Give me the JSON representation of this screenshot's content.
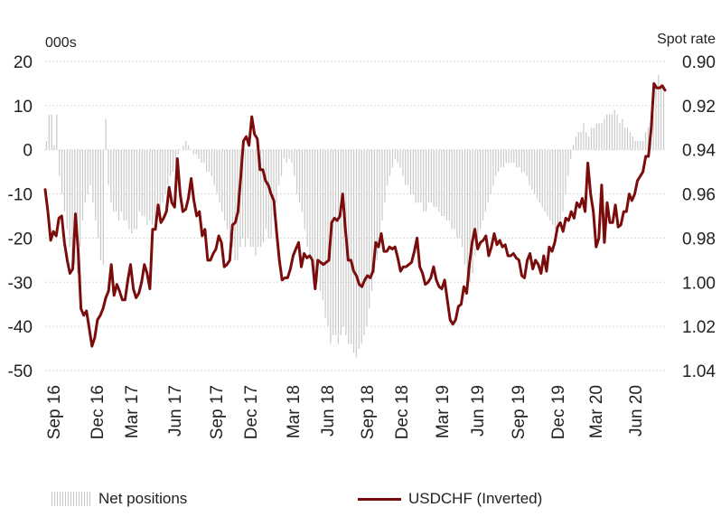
{
  "chart_data": {
    "type": "bar+line",
    "left_axis": {
      "unit_label": "000s",
      "ticks": [
        20,
        10,
        0,
        -10,
        -20,
        -30,
        -40,
        -50
      ],
      "range": [
        -50,
        20
      ]
    },
    "right_axis": {
      "unit_label": "Spot rate",
      "ticks": [
        "0.90",
        "0.92",
        "0.94",
        "0.96",
        "0.98",
        "1.00",
        "1.02",
        "1.04"
      ],
      "range": [
        0.9,
        1.04
      ],
      "inverted": true
    },
    "x_tick_labels": [
      "Sep 16",
      "Dec 16",
      "Mar 17",
      "Jun 17",
      "Sep 17",
      "Dec 17",
      "Mar 18",
      "Jun 18",
      "Sep 18",
      "Dec 18",
      "Mar 19",
      "Jun 19",
      "Sep 19",
      "Dec 19",
      "Mar 20",
      "Jun 20"
    ],
    "grid": "horizontal dotted",
    "series": [
      {
        "name": "Net positions",
        "type": "bar",
        "axis": "left",
        "color": "#c9c9c9",
        "values": [
          2,
          8,
          8,
          1,
          8,
          -6,
          -10,
          -14,
          -18,
          -22,
          -24,
          -26,
          -28,
          -22,
          -16,
          -12,
          -10,
          -8,
          -12,
          -16,
          -20,
          -25,
          -26,
          7,
          -8,
          -12,
          -14,
          -14,
          -16,
          -14,
          -16,
          -16,
          -18,
          -19,
          -18,
          -18,
          -14,
          -15,
          -15,
          -17,
          -16,
          -17,
          -16,
          -15,
          -14,
          -12,
          -10,
          -8,
          -6,
          -5,
          -3,
          -1,
          0,
          1,
          2,
          1,
          0,
          -1,
          -1,
          -2,
          -3,
          -3,
          -5,
          -5,
          -6,
          -8,
          -10,
          -12,
          -14,
          -16,
          -18,
          -20,
          -22,
          -25,
          -25,
          -22,
          -20,
          -22,
          -20,
          -22,
          -22,
          -24,
          -22,
          -22,
          -21,
          -18,
          -20,
          -20,
          -15,
          -12,
          -8,
          -6,
          -2,
          -3,
          -2,
          -3,
          -6,
          -10,
          -12,
          -14,
          -18,
          -22,
          -24,
          -26,
          -28,
          -30,
          -32,
          -34,
          -38,
          -40,
          -44,
          -42,
          -42,
          -44,
          -42,
          -40,
          -42,
          -44,
          -44,
          -46,
          -47,
          -45,
          -44,
          -42,
          -40,
          -36,
          -32,
          -28,
          -25,
          -20,
          -16,
          -12,
          -8,
          -6,
          -4,
          -2,
          -3,
          -4,
          -6,
          -8,
          -8,
          -10,
          -10,
          -12,
          -12,
          -12,
          -14,
          -14,
          -12,
          -12,
          -13,
          -13,
          -14,
          -15,
          -15,
          -16,
          -16,
          -18,
          -18,
          -20,
          -20,
          -22,
          -26,
          -28,
          -30,
          -28,
          -24,
          -20,
          -18,
          -16,
          -14,
          -12,
          -10,
          -8,
          -6,
          -5,
          -4,
          -4,
          -3,
          -3,
          -3,
          -3,
          -4,
          -4,
          -5,
          -5,
          -6,
          -8,
          -9,
          -10,
          -11,
          -12,
          -13,
          -14,
          -15,
          -16,
          -17,
          -18,
          -18,
          -16,
          -14,
          -10,
          -6,
          -2,
          1,
          3,
          4,
          4,
          6,
          4,
          3,
          5,
          5,
          6,
          6,
          6,
          7,
          8,
          8,
          8,
          9,
          8,
          6,
          7,
          5,
          5,
          4,
          3,
          2,
          2,
          2,
          2,
          4,
          5,
          6,
          8,
          14,
          17,
          15,
          13
        ]
      },
      {
        "name": "USDCHF (Inverted)",
        "type": "line",
        "axis": "right",
        "color": "#7a0c0c",
        "values": [
          0.958,
          0.968,
          0.981,
          0.977,
          0.979,
          0.971,
          0.97,
          0.982,
          0.99,
          0.996,
          0.994,
          0.969,
          0.986,
          1.012,
          1.015,
          1.013,
          1.021,
          1.029,
          1.025,
          1.017,
          1.015,
          1.012,
          1.007,
          1.004,
          0.992,
          1.006,
          1.001,
          1.004,
          1.008,
          1.008,
          0.999,
          0.992,
          1.003,
          1.007,
          1.005,
          1.0,
          0.992,
          0.996,
          1.003,
          0.976,
          0.976,
          0.965,
          0.973,
          0.971,
          0.968,
          0.957,
          0.964,
          0.966,
          0.944,
          0.96,
          0.968,
          0.967,
          0.962,
          0.953,
          0.963,
          0.97,
          0.968,
          0.979,
          0.976,
          0.99,
          0.99,
          0.987,
          0.985,
          0.979,
          0.982,
          0.993,
          0.992,
          0.99,
          0.974,
          0.973,
          0.968,
          0.952,
          0.936,
          0.934,
          0.938,
          0.925,
          0.933,
          0.935,
          0.949,
          0.949,
          0.954,
          0.956,
          0.96,
          0.963,
          0.977,
          0.99,
          0.999,
          0.998,
          0.998,
          0.994,
          0.988,
          0.985,
          0.982,
          0.993,
          0.987,
          0.989,
          0.988,
          0.99,
          1.003,
          0.99,
          0.991,
          0.992,
          0.991,
          0.99,
          0.973,
          0.971,
          0.972,
          0.97,
          0.96,
          0.976,
          0.99,
          0.99,
          0.995,
          0.997,
          1.001,
          1.002,
          0.999,
          0.997,
          0.998,
          0.995,
          0.982,
          0.984,
          0.978,
          0.986,
          0.986,
          0.984,
          0.985,
          0.984,
          0.989,
          0.995,
          0.993,
          0.993,
          0.992,
          0.991,
          0.986,
          0.98,
          0.993,
          0.996,
          1.001,
          1.0,
          0.998,
          0.993,
          0.999,
          1.002,
          1.003,
          0.999,
          1.008,
          1.017,
          1.019,
          1.017,
          1.011,
          1.01,
          1.002,
          1.005,
          0.992,
          0.982,
          0.976,
          0.985,
          0.982,
          0.981,
          0.979,
          0.988,
          0.984,
          0.978,
          0.983,
          0.981,
          0.984,
          0.983,
          0.988,
          0.988,
          0.987,
          0.989,
          0.99,
          0.997,
          0.998,
          0.99,
          0.987,
          0.994,
          0.99,
          0.992,
          0.996,
          0.988,
          0.995,
          0.984,
          0.986,
          0.982,
          0.975,
          0.973,
          0.977,
          0.971,
          0.972,
          0.968,
          0.971,
          0.964,
          0.966,
          0.962,
          0.968,
          0.946,
          0.96,
          0.968,
          0.984,
          0.98,
          0.956,
          0.982,
          0.964,
          0.973,
          0.973,
          0.965,
          0.975,
          0.974,
          0.968,
          0.968,
          0.96,
          0.963,
          0.96,
          0.954,
          0.952,
          0.95,
          0.943,
          0.943,
          0.93,
          0.91,
          0.912,
          0.912,
          0.911,
          0.913
        ]
      }
    ]
  },
  "legend": {
    "bars_label": "Net positions",
    "line_label": "USDCHF (Inverted)"
  }
}
